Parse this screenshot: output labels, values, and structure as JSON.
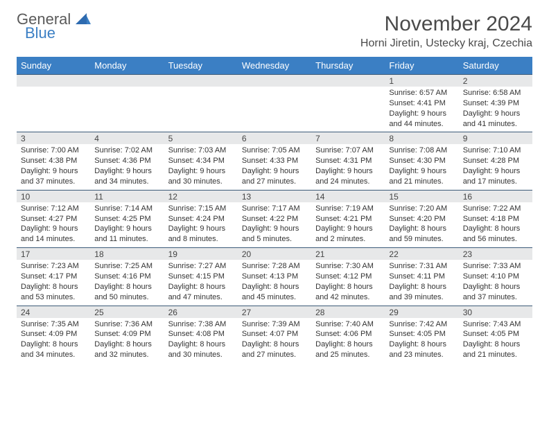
{
  "logo": {
    "general": "General",
    "blue": "Blue"
  },
  "title": "November 2024",
  "location": "Horni Jiretin, Ustecky kraj, Czechia",
  "colors": {
    "header_bg": "#3b7fc4",
    "header_text": "#ffffff",
    "date_row_bg": "#e7e8e9",
    "date_row_border": "#3b5a78",
    "body_text": "#333333",
    "title_text": "#4a4a4a",
    "logo_gray": "#5a5a5a",
    "logo_blue": "#3b7fc4",
    "background": "#ffffff"
  },
  "weekdays": [
    "Sunday",
    "Monday",
    "Tuesday",
    "Wednesday",
    "Thursday",
    "Friday",
    "Saturday"
  ],
  "weeks": [
    {
      "dates": [
        "",
        "",
        "",
        "",
        "",
        "1",
        "2"
      ],
      "info": [
        "",
        "",
        "",
        "",
        "",
        "Sunrise: 6:57 AM\nSunset: 4:41 PM\nDaylight: 9 hours and 44 minutes.",
        "Sunrise: 6:58 AM\nSunset: 4:39 PM\nDaylight: 9 hours and 41 minutes."
      ]
    },
    {
      "dates": [
        "3",
        "4",
        "5",
        "6",
        "7",
        "8",
        "9"
      ],
      "info": [
        "Sunrise: 7:00 AM\nSunset: 4:38 PM\nDaylight: 9 hours and 37 minutes.",
        "Sunrise: 7:02 AM\nSunset: 4:36 PM\nDaylight: 9 hours and 34 minutes.",
        "Sunrise: 7:03 AM\nSunset: 4:34 PM\nDaylight: 9 hours and 30 minutes.",
        "Sunrise: 7:05 AM\nSunset: 4:33 PM\nDaylight: 9 hours and 27 minutes.",
        "Sunrise: 7:07 AM\nSunset: 4:31 PM\nDaylight: 9 hours and 24 minutes.",
        "Sunrise: 7:08 AM\nSunset: 4:30 PM\nDaylight: 9 hours and 21 minutes.",
        "Sunrise: 7:10 AM\nSunset: 4:28 PM\nDaylight: 9 hours and 17 minutes."
      ]
    },
    {
      "dates": [
        "10",
        "11",
        "12",
        "13",
        "14",
        "15",
        "16"
      ],
      "info": [
        "Sunrise: 7:12 AM\nSunset: 4:27 PM\nDaylight: 9 hours and 14 minutes.",
        "Sunrise: 7:14 AM\nSunset: 4:25 PM\nDaylight: 9 hours and 11 minutes.",
        "Sunrise: 7:15 AM\nSunset: 4:24 PM\nDaylight: 9 hours and 8 minutes.",
        "Sunrise: 7:17 AM\nSunset: 4:22 PM\nDaylight: 9 hours and 5 minutes.",
        "Sunrise: 7:19 AM\nSunset: 4:21 PM\nDaylight: 9 hours and 2 minutes.",
        "Sunrise: 7:20 AM\nSunset: 4:20 PM\nDaylight: 8 hours and 59 minutes.",
        "Sunrise: 7:22 AM\nSunset: 4:18 PM\nDaylight: 8 hours and 56 minutes."
      ]
    },
    {
      "dates": [
        "17",
        "18",
        "19",
        "20",
        "21",
        "22",
        "23"
      ],
      "info": [
        "Sunrise: 7:23 AM\nSunset: 4:17 PM\nDaylight: 8 hours and 53 minutes.",
        "Sunrise: 7:25 AM\nSunset: 4:16 PM\nDaylight: 8 hours and 50 minutes.",
        "Sunrise: 7:27 AM\nSunset: 4:15 PM\nDaylight: 8 hours and 47 minutes.",
        "Sunrise: 7:28 AM\nSunset: 4:13 PM\nDaylight: 8 hours and 45 minutes.",
        "Sunrise: 7:30 AM\nSunset: 4:12 PM\nDaylight: 8 hours and 42 minutes.",
        "Sunrise: 7:31 AM\nSunset: 4:11 PM\nDaylight: 8 hours and 39 minutes.",
        "Sunrise: 7:33 AM\nSunset: 4:10 PM\nDaylight: 8 hours and 37 minutes."
      ]
    },
    {
      "dates": [
        "24",
        "25",
        "26",
        "27",
        "28",
        "29",
        "30"
      ],
      "info": [
        "Sunrise: 7:35 AM\nSunset: 4:09 PM\nDaylight: 8 hours and 34 minutes.",
        "Sunrise: 7:36 AM\nSunset: 4:09 PM\nDaylight: 8 hours and 32 minutes.",
        "Sunrise: 7:38 AM\nSunset: 4:08 PM\nDaylight: 8 hours and 30 minutes.",
        "Sunrise: 7:39 AM\nSunset: 4:07 PM\nDaylight: 8 hours and 27 minutes.",
        "Sunrise: 7:40 AM\nSunset: 4:06 PM\nDaylight: 8 hours and 25 minutes.",
        "Sunrise: 7:42 AM\nSunset: 4:05 PM\nDaylight: 8 hours and 23 minutes.",
        "Sunrise: 7:43 AM\nSunset: 4:05 PM\nDaylight: 8 hours and 21 minutes."
      ]
    }
  ]
}
